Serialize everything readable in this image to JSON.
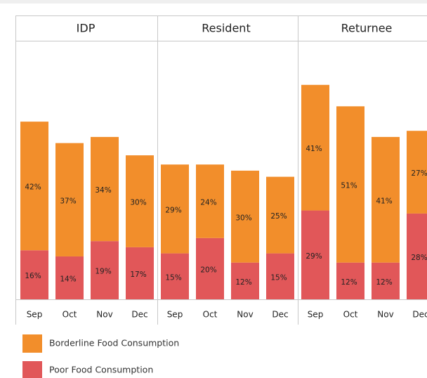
{
  "chart_data": {
    "type": "bar",
    "stacked": true,
    "facets": [
      "IDP",
      "Resident",
      "Returnee"
    ],
    "categories": [
      "Sep",
      "Oct",
      "Nov",
      "Dec"
    ],
    "series": [
      {
        "name": "Borderline Food Consumption",
        "color": "#f28e2b",
        "values": [
          [
            42,
            37,
            34,
            30
          ],
          [
            29,
            24,
            30,
            25
          ],
          [
            41,
            51,
            41,
            27
          ]
        ],
        "value_labels": [
          [
            "42%",
            "37%",
            "34%",
            "30%"
          ],
          [
            "29%",
            "24%",
            "30%",
            "25%"
          ],
          [
            "41%",
            "51%",
            "41%",
            "27%"
          ]
        ]
      },
      {
        "name": "Poor Food Consumption",
        "color": "#e15759",
        "values": [
          [
            16,
            14,
            19,
            17
          ],
          [
            15,
            20,
            12,
            15
          ],
          [
            29,
            12,
            12,
            28
          ]
        ],
        "value_labels": [
          [
            "16%",
            "14%",
            "19%",
            "17%"
          ],
          [
            "15%",
            "20%",
            "12%",
            "15%"
          ],
          [
            "29%",
            "12%",
            "12%",
            "28%"
          ]
        ]
      }
    ]
  }
}
